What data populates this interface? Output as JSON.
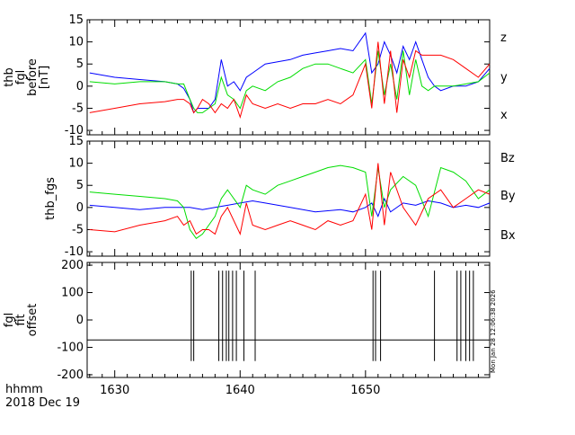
{
  "colors": {
    "x": "#0000ff",
    "y": "#00dd00",
    "z": "#ff0000",
    "axis": "#000000",
    "trace": "#000000"
  },
  "xaxis": {
    "xlim": [
      1627.8,
      1659.9
    ],
    "ticks": [
      1630,
      1640,
      1650
    ],
    "tick_labels": [
      "1630",
      "1640",
      "1650"
    ],
    "footer_line1": "hhmm",
    "footer_line2": "2018 Dec 19"
  },
  "timestamp_text": "Mon Jan 28 12:06:38 2026",
  "chart_data": [
    {
      "type": "line",
      "ylabel_lines": [
        "thb",
        "fgl",
        "before",
        "[nT]"
      ],
      "ylim": [
        -11,
        15
      ],
      "yticks": [
        -10,
        -5,
        0,
        5,
        10,
        15
      ],
      "legend": [
        "z",
        "y",
        "x"
      ],
      "series": [
        {
          "name": "x",
          "color_key": "x",
          "x": [
            1628,
            1630,
            1632,
            1634,
            1635,
            1635.5,
            1636,
            1636.3,
            1636.6,
            1637,
            1637.5,
            1638,
            1638.5,
            1639,
            1639.5,
            1640,
            1640.5,
            1641,
            1642,
            1643,
            1644,
            1645,
            1646,
            1647,
            1648,
            1649,
            1650,
            1650.5,
            1651,
            1651.5,
            1652,
            1652.5,
            1653,
            1653.5,
            1654,
            1654.5,
            1655,
            1655.5,
            1656,
            1657,
            1658,
            1659,
            1659.9
          ],
          "values": [
            3,
            2,
            1.5,
            1,
            0.5,
            -0.5,
            -3,
            -6,
            -5,
            -5,
            -5,
            -3,
            6,
            0,
            1,
            -1,
            2,
            3,
            5,
            5.5,
            6,
            7,
            7.5,
            8,
            8.5,
            8,
            12,
            3,
            5,
            10,
            7,
            3,
            9,
            6,
            10,
            6,
            2,
            0,
            -1,
            0,
            0,
            1,
            4
          ]
        },
        {
          "name": "y",
          "color_key": "y",
          "x": [
            1628,
            1630,
            1632,
            1634,
            1635,
            1635.5,
            1636,
            1636.3,
            1636.6,
            1637,
            1637.5,
            1638,
            1638.5,
            1639,
            1639.5,
            1640,
            1640.5,
            1641,
            1642,
            1643,
            1644,
            1645,
            1646,
            1647,
            1648,
            1649,
            1650,
            1650.5,
            1651,
            1651.5,
            1652,
            1652.5,
            1653,
            1653.5,
            1654,
            1654.5,
            1655,
            1655.5,
            1656,
            1657,
            1658,
            1659,
            1659.9
          ],
          "values": [
            1,
            0.5,
            1,
            1,
            0.5,
            0.5,
            -3,
            -5,
            -6,
            -6,
            -5,
            -4,
            2,
            -2,
            -3,
            -5,
            -1,
            0,
            -1,
            1,
            2,
            4,
            5,
            5,
            4,
            3,
            6,
            -4,
            8,
            -2,
            5,
            -3,
            8,
            -2,
            6,
            0,
            -1,
            0,
            0,
            0,
            0.5,
            1,
            3
          ]
        },
        {
          "name": "z",
          "color_key": "z",
          "x": [
            1628,
            1630,
            1632,
            1634,
            1635,
            1635.5,
            1636,
            1636.3,
            1636.6,
            1637,
            1637.5,
            1638,
            1638.5,
            1639,
            1639.5,
            1640,
            1640.5,
            1641,
            1642,
            1643,
            1644,
            1645,
            1646,
            1647,
            1648,
            1649,
            1650,
            1650.5,
            1651,
            1651.5,
            1652,
            1652.5,
            1653,
            1653.5,
            1654,
            1654.5,
            1655,
            1655.5,
            1656,
            1657,
            1658,
            1659,
            1659.9
          ],
          "values": [
            -6,
            -5,
            -4,
            -3.5,
            -3,
            -3,
            -4,
            -6,
            -5,
            -3,
            -4,
            -6,
            -4,
            -5,
            -3,
            -7,
            -2,
            -4,
            -5,
            -4,
            -5,
            -4,
            -4,
            -3,
            -4,
            -2,
            5,
            -5,
            10,
            -4,
            8,
            -6,
            6,
            2,
            8,
            7,
            7,
            7,
            7,
            6,
            4,
            2,
            5
          ]
        }
      ]
    },
    {
      "type": "line",
      "ylabel_lines": [
        "thb_fgs"
      ],
      "ylim": [
        -11,
        15
      ],
      "yticks": [
        -10,
        -5,
        0,
        5,
        10,
        15
      ],
      "legend": [
        "Bz",
        "By",
        "Bx"
      ],
      "series": [
        {
          "name": "Bx",
          "color_key": "x",
          "x": [
            1628,
            1630,
            1632,
            1634,
            1635,
            1636,
            1637,
            1638,
            1639,
            1640,
            1641,
            1642,
            1644,
            1646,
            1648,
            1649,
            1650,
            1650.5,
            1651,
            1651.5,
            1652,
            1653,
            1654,
            1655,
            1656,
            1657,
            1658,
            1659,
            1659.9
          ],
          "values": [
            0.5,
            0,
            -0.5,
            0,
            0,
            0,
            -0.5,
            0,
            0.5,
            1,
            1.5,
            1,
            0,
            -1,
            -0.5,
            -1,
            0,
            1,
            -2,
            2,
            -1,
            1,
            0.5,
            1.5,
            1,
            0,
            0.5,
            0,
            1
          ]
        },
        {
          "name": "By",
          "color_key": "y",
          "x": [
            1628,
            1630,
            1632,
            1634,
            1635,
            1635.5,
            1636,
            1636.5,
            1637,
            1637.5,
            1638,
            1638.5,
            1639,
            1640,
            1640.5,
            1641,
            1642,
            1643,
            1644,
            1645,
            1646,
            1647,
            1648,
            1649,
            1650,
            1650.5,
            1651,
            1651.5,
            1652,
            1653,
            1654,
            1655,
            1656,
            1657,
            1658,
            1659,
            1659.9
          ],
          "values": [
            3.5,
            3,
            2.5,
            2,
            1.5,
            0,
            -5,
            -7,
            -6,
            -4,
            -2,
            2,
            4,
            0,
            5,
            4,
            3,
            5,
            6,
            7,
            8,
            9,
            9.5,
            9,
            8,
            -2,
            9,
            0,
            4,
            7,
            5,
            -2,
            9,
            8,
            6,
            2,
            4
          ]
        },
        {
          "name": "Bz",
          "color_key": "z",
          "x": [
            1628,
            1630,
            1632,
            1634,
            1635,
            1635.5,
            1636,
            1636.5,
            1637,
            1637.5,
            1638,
            1638.5,
            1639,
            1640,
            1640.5,
            1641,
            1642,
            1643,
            1644,
            1645,
            1646,
            1647,
            1648,
            1649,
            1650,
            1650.5,
            1651,
            1651.5,
            1652,
            1653,
            1654,
            1655,
            1656,
            1657,
            1658,
            1659,
            1659.9
          ],
          "values": [
            -5,
            -5.5,
            -4,
            -3,
            -2,
            -4,
            -3,
            -6,
            -5,
            -5,
            -6,
            -2,
            0,
            -6,
            1,
            -4,
            -5,
            -4,
            -3,
            -4,
            -5,
            -3,
            -4,
            -3,
            3,
            -5,
            10,
            -4,
            8,
            0,
            -4,
            2,
            4,
            0,
            2,
            4,
            3
          ]
        }
      ]
    },
    {
      "type": "line",
      "ylabel_lines": [
        "fgl",
        "fit",
        "offset"
      ],
      "ylim": [
        -210,
        210
      ],
      "yticks": [
        -200,
        -100,
        0,
        100,
        200
      ],
      "baseline": -73,
      "spike_times": [
        1636.1,
        1636.3,
        1638.3,
        1638.6,
        1638.9,
        1639.1,
        1639.4,
        1639.7,
        1640.3,
        1641.2,
        1650.6,
        1650.8,
        1651.2,
        1655.5,
        1657.3,
        1657.6,
        1658.0,
        1658.3,
        1658.6
      ],
      "spike_top": 180,
      "spike_bottom": -150
    }
  ]
}
